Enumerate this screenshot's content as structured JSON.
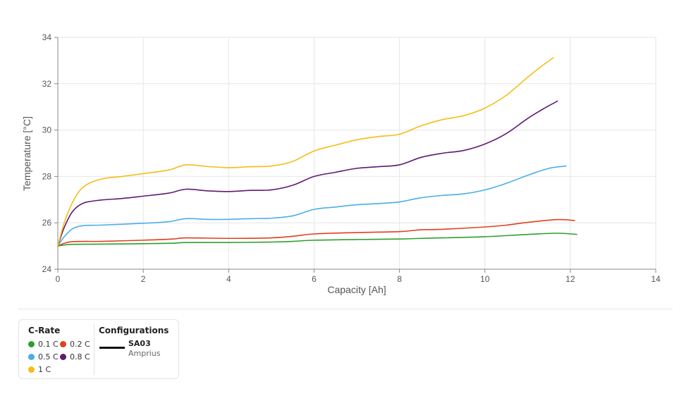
{
  "chart_data": {
    "type": "line",
    "xlabel": "Capacity [Ah]",
    "ylabel": "Temperature [°C]",
    "xlim": [
      0,
      14
    ],
    "ylim": [
      24,
      34
    ],
    "xticks": [
      0,
      2,
      4,
      6,
      8,
      10,
      12,
      14
    ],
    "yticks": [
      24,
      26,
      28,
      30,
      32,
      34
    ],
    "grid": true,
    "series": [
      {
        "name": "0.1 C",
        "color": "#2ca02c",
        "x": [
          0,
          0.3,
          1,
          2,
          2.7,
          3,
          4,
          5,
          5.5,
          6,
          7,
          8,
          8.5,
          9,
          10,
          11,
          11.7,
          12.15
        ],
        "y": [
          25.0,
          25.07,
          25.08,
          25.1,
          25.12,
          25.15,
          25.15,
          25.17,
          25.2,
          25.25,
          25.28,
          25.3,
          25.33,
          25.35,
          25.4,
          25.5,
          25.55,
          25.5
        ]
      },
      {
        "name": "0.2 C",
        "color": "#e0401e",
        "x": [
          0,
          0.3,
          1,
          2,
          2.7,
          3,
          4,
          5,
          5.5,
          6,
          7,
          8,
          8.5,
          9,
          10,
          10.5,
          11,
          11.7,
          12.1
        ],
        "y": [
          25.0,
          25.18,
          25.2,
          25.25,
          25.3,
          25.35,
          25.33,
          25.35,
          25.42,
          25.52,
          25.58,
          25.62,
          25.7,
          25.72,
          25.82,
          25.9,
          26.02,
          26.14,
          26.1
        ]
      },
      {
        "name": "0.5 C",
        "color": "#4aaee8",
        "x": [
          0,
          0.15,
          0.35,
          0.6,
          1,
          2,
          2.6,
          3,
          3.5,
          4,
          4.5,
          5,
          5.5,
          6,
          6.5,
          7,
          7.5,
          8,
          8.5,
          9,
          9.5,
          10,
          10.5,
          11,
          11.5,
          11.9
        ],
        "y": [
          25.0,
          25.4,
          25.75,
          25.88,
          25.9,
          25.98,
          26.05,
          26.18,
          26.15,
          26.15,
          26.18,
          26.2,
          26.3,
          26.58,
          26.68,
          26.78,
          26.83,
          26.9,
          27.08,
          27.18,
          27.25,
          27.42,
          27.7,
          28.05,
          28.35,
          28.45
        ]
      },
      {
        "name": "0.8 C",
        "color": "#5e1a72",
        "x": [
          0,
          0.15,
          0.35,
          0.6,
          1,
          1.5,
          2,
          2.6,
          3,
          3.5,
          4,
          4.5,
          5,
          5.5,
          6,
          6.5,
          7,
          7.5,
          8,
          8.5,
          9,
          9.5,
          10,
          10.5,
          11,
          11.4,
          11.7
        ],
        "y": [
          25.0,
          25.8,
          26.5,
          26.85,
          26.98,
          27.05,
          27.15,
          27.28,
          27.45,
          27.38,
          27.35,
          27.4,
          27.42,
          27.62,
          28.0,
          28.18,
          28.35,
          28.42,
          28.5,
          28.82,
          29.0,
          29.12,
          29.4,
          29.85,
          30.5,
          30.95,
          31.25
        ]
      },
      {
        "name": "1 C",
        "color": "#f5bd17",
        "x": [
          0,
          0.15,
          0.35,
          0.6,
          1,
          1.5,
          2,
          2.6,
          3,
          3.5,
          4,
          4.5,
          5,
          5.5,
          6,
          6.5,
          7,
          7.5,
          8,
          8.5,
          9,
          9.5,
          10,
          10.5,
          11,
          11.3,
          11.6
        ],
        "y": [
          25.0,
          26.0,
          26.9,
          27.55,
          27.88,
          28.0,
          28.12,
          28.28,
          28.5,
          28.43,
          28.38,
          28.42,
          28.45,
          28.65,
          29.1,
          29.35,
          29.58,
          29.72,
          29.82,
          30.18,
          30.45,
          30.62,
          30.95,
          31.5,
          32.28,
          32.72,
          33.12
        ]
      }
    ]
  },
  "legend": {
    "crate_title": "C-Rate",
    "crate_items": [
      {
        "label": "0.1 C",
        "color": "#2ca02c"
      },
      {
        "label": "0.2 C",
        "color": "#e0401e"
      },
      {
        "label": "0.5 C",
        "color": "#4aaee8"
      },
      {
        "label": "0.8 C",
        "color": "#5e1a72"
      },
      {
        "label": "1 C",
        "color": "#f5bd17"
      }
    ],
    "config_title": "Configurations",
    "config_name": "SA03",
    "config_sub": "Amprius"
  }
}
